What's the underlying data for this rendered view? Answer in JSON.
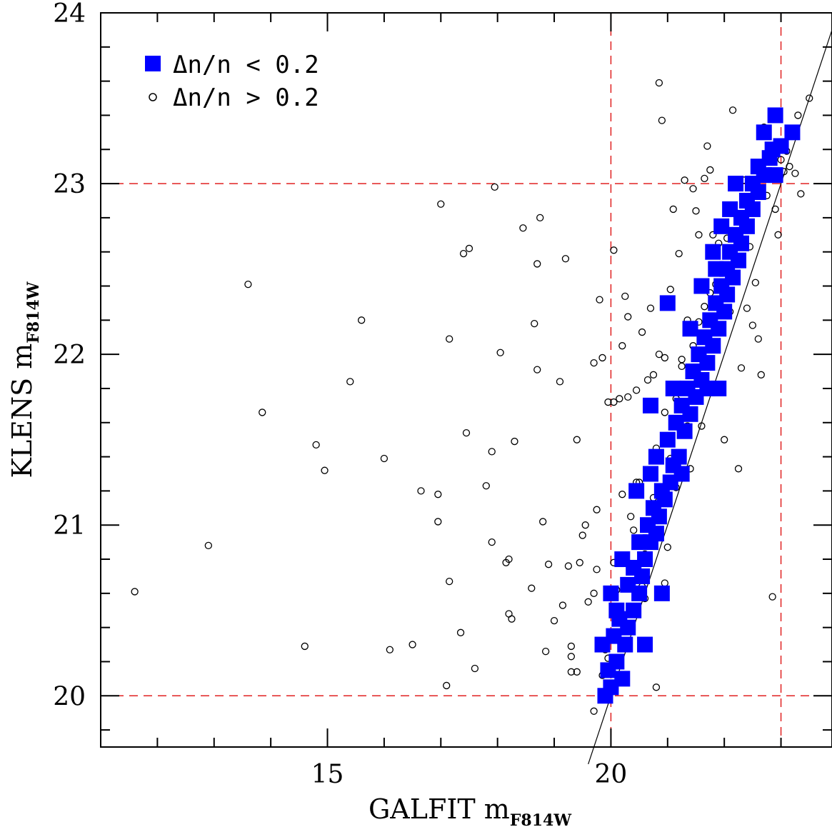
{
  "chart_data": {
    "type": "scatter",
    "xlabel": "GALFIT m",
    "xlabel_sub": "F814W",
    "ylabel": "KLENS m",
    "ylabel_sub": "F814W",
    "xlim": [
      11.0,
      23.9
    ],
    "ylim": [
      19.7,
      24.0
    ],
    "x_major_ticks": [
      15,
      20
    ],
    "x_minor_ticks": [
      12,
      13,
      14,
      16,
      17,
      18,
      19,
      21,
      22,
      23
    ],
    "y_major_ticks": [
      20,
      21,
      22,
      23,
      24
    ],
    "y_minor_ticks": [
      19.8,
      20.2,
      20.4,
      20.6,
      20.8,
      21.2,
      21.4,
      21.6,
      21.8,
      22.2,
      22.4,
      22.6,
      22.8,
      23.2,
      23.4,
      23.6,
      23.8
    ],
    "reference_lines": {
      "vertical": [
        20,
        23
      ],
      "horizontal": [
        20,
        23
      ],
      "color": "#e02020",
      "style": "dashed"
    },
    "identity_line": {
      "from": [
        19.6,
        19.6
      ],
      "to": [
        23.9,
        23.9
      ]
    },
    "legend": {
      "position": "top-left",
      "entries": [
        "Δn/n < 0.2",
        "Δn/n > 0.2"
      ]
    },
    "series": [
      {
        "name": "Δn/n < 0.2",
        "marker": "filled-square",
        "color": "#0000ff",
        "points": [
          [
            19.9,
            20.0
          ],
          [
            20.0,
            20.05
          ],
          [
            19.95,
            20.15
          ],
          [
            20.1,
            20.2
          ],
          [
            20.2,
            20.1
          ],
          [
            19.85,
            20.3
          ],
          [
            20.05,
            20.35
          ],
          [
            20.25,
            20.3
          ],
          [
            20.15,
            20.45
          ],
          [
            20.3,
            20.4
          ],
          [
            20.1,
            20.5
          ],
          [
            20.4,
            20.5
          ],
          [
            20.5,
            20.6
          ],
          [
            20.3,
            20.65
          ],
          [
            20.55,
            20.7
          ],
          [
            20.0,
            20.6
          ],
          [
            20.4,
            20.75
          ],
          [
            20.6,
            20.8
          ],
          [
            20.2,
            20.8
          ],
          [
            20.7,
            20.9
          ],
          [
            20.5,
            20.9
          ],
          [
            20.8,
            20.95
          ],
          [
            20.65,
            21.0
          ],
          [
            20.85,
            21.05
          ],
          [
            20.75,
            21.1
          ],
          [
            20.95,
            21.15
          ],
          [
            20.45,
            21.2
          ],
          [
            20.9,
            21.2
          ],
          [
            21.05,
            21.25
          ],
          [
            20.7,
            21.3
          ],
          [
            21.1,
            21.35
          ],
          [
            20.8,
            21.4
          ],
          [
            21.2,
            21.4
          ],
          [
            21.0,
            21.5
          ],
          [
            21.3,
            21.55
          ],
          [
            21.15,
            21.6
          ],
          [
            21.4,
            21.65
          ],
          [
            21.25,
            21.7
          ],
          [
            20.7,
            21.7
          ],
          [
            21.5,
            21.75
          ],
          [
            21.35,
            21.8
          ],
          [
            21.6,
            21.85
          ],
          [
            21.45,
            21.9
          ],
          [
            21.7,
            21.95
          ],
          [
            21.55,
            22.0
          ],
          [
            21.8,
            22.05
          ],
          [
            21.65,
            22.1
          ],
          [
            21.9,
            22.15
          ],
          [
            21.75,
            22.2
          ],
          [
            21.4,
            22.15
          ],
          [
            22.0,
            22.25
          ],
          [
            21.85,
            22.3
          ],
          [
            21.0,
            22.3
          ],
          [
            22.05,
            22.35
          ],
          [
            21.95,
            22.4
          ],
          [
            22.15,
            22.45
          ],
          [
            22.05,
            22.5
          ],
          [
            21.85,
            22.5
          ],
          [
            22.25,
            22.55
          ],
          [
            22.1,
            22.6
          ],
          [
            22.3,
            22.65
          ],
          [
            22.2,
            22.7
          ],
          [
            21.95,
            22.75
          ],
          [
            22.4,
            22.75
          ],
          [
            22.3,
            22.8
          ],
          [
            22.1,
            22.85
          ],
          [
            22.5,
            22.85
          ],
          [
            22.4,
            22.9
          ],
          [
            22.6,
            22.95
          ],
          [
            22.2,
            23.0
          ],
          [
            22.5,
            23.0
          ],
          [
            22.7,
            23.05
          ],
          [
            22.9,
            23.05
          ],
          [
            22.6,
            23.1
          ],
          [
            22.8,
            23.15
          ],
          [
            22.85,
            23.2
          ],
          [
            23.0,
            23.22
          ],
          [
            23.2,
            23.3
          ],
          [
            22.7,
            23.3
          ],
          [
            22.9,
            23.4
          ],
          [
            21.7,
            21.8
          ],
          [
            21.1,
            21.8
          ],
          [
            21.9,
            21.8
          ],
          [
            21.25,
            21.3
          ],
          [
            20.6,
            20.3
          ],
          [
            20.9,
            20.6
          ],
          [
            21.6,
            22.4
          ],
          [
            21.8,
            22.6
          ]
        ]
      },
      {
        "name": "Δn/n > 0.2",
        "marker": "open-circle",
        "color": "#000000",
        "points": [
          [
            11.6,
            20.61
          ],
          [
            12.9,
            20.88
          ],
          [
            13.6,
            22.41
          ],
          [
            13.85,
            21.66
          ],
          [
            14.6,
            20.29
          ],
          [
            14.8,
            21.47
          ],
          [
            14.95,
            21.32
          ],
          [
            15.4,
            21.84
          ],
          [
            15.6,
            22.2
          ],
          [
            16.0,
            21.39
          ],
          [
            16.1,
            20.27
          ],
          [
            16.5,
            20.3
          ],
          [
            16.65,
            21.2
          ],
          [
            16.95,
            21.18
          ],
          [
            16.95,
            21.02
          ],
          [
            17.0,
            22.88
          ],
          [
            17.1,
            20.06
          ],
          [
            17.15,
            22.09
          ],
          [
            17.15,
            20.67
          ],
          [
            17.35,
            20.37
          ],
          [
            17.4,
            22.59
          ],
          [
            17.5,
            22.62
          ],
          [
            17.45,
            21.54
          ],
          [
            17.6,
            20.16
          ],
          [
            17.8,
            21.23
          ],
          [
            17.9,
            20.9
          ],
          [
            17.9,
            21.43
          ],
          [
            17.95,
            22.98
          ],
          [
            18.05,
            22.01
          ],
          [
            18.15,
            20.78
          ],
          [
            18.2,
            20.8
          ],
          [
            18.2,
            20.48
          ],
          [
            18.25,
            20.45
          ],
          [
            18.3,
            21.49
          ],
          [
            18.45,
            22.74
          ],
          [
            18.6,
            20.63
          ],
          [
            18.65,
            22.18
          ],
          [
            18.7,
            21.91
          ],
          [
            18.7,
            22.53
          ],
          [
            18.75,
            22.8
          ],
          [
            18.8,
            21.02
          ],
          [
            18.85,
            20.26
          ],
          [
            18.9,
            20.77
          ],
          [
            19.0,
            20.44
          ],
          [
            19.1,
            21.84
          ],
          [
            19.15,
            20.53
          ],
          [
            19.2,
            22.56
          ],
          [
            19.25,
            20.76
          ],
          [
            19.3,
            20.29
          ],
          [
            19.3,
            20.23
          ],
          [
            19.3,
            20.14
          ],
          [
            19.4,
            20.14
          ],
          [
            19.4,
            21.5
          ],
          [
            19.45,
            20.78
          ],
          [
            19.5,
            20.94
          ],
          [
            19.55,
            21.0
          ],
          [
            19.6,
            20.55
          ],
          [
            19.7,
            19.91
          ],
          [
            19.7,
            20.6
          ],
          [
            19.7,
            21.95
          ],
          [
            19.75,
            20.74
          ],
          [
            19.75,
            21.09
          ],
          [
            19.8,
            20.32
          ],
          [
            19.8,
            22.32
          ],
          [
            19.85,
            21.98
          ],
          [
            19.85,
            20.12
          ],
          [
            19.9,
            20.27
          ],
          [
            19.9,
            19.99
          ],
          [
            19.9,
            20.16
          ],
          [
            19.95,
            20.22
          ],
          [
            19.95,
            21.72
          ],
          [
            20.05,
            22.61
          ],
          [
            20.05,
            20.78
          ],
          [
            20.1,
            20.62
          ],
          [
            20.15,
            21.74
          ],
          [
            20.2,
            21.18
          ],
          [
            20.2,
            22.05
          ],
          [
            20.25,
            20.67
          ],
          [
            20.3,
            21.75
          ],
          [
            20.35,
            21.05
          ],
          [
            20.4,
            20.97
          ],
          [
            20.45,
            21.25
          ],
          [
            20.5,
            21.25
          ],
          [
            20.55,
            20.64
          ],
          [
            20.6,
            20.57
          ],
          [
            20.6,
            20.83
          ],
          [
            20.65,
            20.92
          ],
          [
            20.7,
            22.27
          ],
          [
            20.75,
            21.16
          ],
          [
            20.8,
            21.45
          ],
          [
            20.8,
            20.05
          ],
          [
            20.85,
            23.59
          ],
          [
            20.9,
            23.37
          ],
          [
            20.95,
            20.66
          ],
          [
            20.95,
            21.98
          ],
          [
            21.0,
            20.87
          ],
          [
            21.05,
            22.38
          ],
          [
            21.1,
            22.85
          ],
          [
            21.15,
            21.22
          ],
          [
            21.2,
            22.59
          ],
          [
            21.25,
            21.97
          ],
          [
            21.3,
            23.02
          ],
          [
            21.35,
            21.58
          ],
          [
            21.4,
            21.33
          ],
          [
            21.45,
            22.97
          ],
          [
            21.5,
            22.84
          ],
          [
            21.55,
            22.7
          ],
          [
            21.6,
            21.58
          ],
          [
            21.65,
            23.03
          ],
          [
            21.7,
            23.22
          ],
          [
            21.75,
            23.08
          ],
          [
            21.8,
            22.7
          ],
          [
            21.85,
            22.07
          ],
          [
            21.9,
            22.65
          ],
          [
            21.95,
            21.78
          ],
          [
            22.0,
            21.5
          ],
          [
            22.05,
            22.52
          ],
          [
            22.1,
            22.25
          ],
          [
            22.15,
            23.43
          ],
          [
            22.2,
            22.47
          ],
          [
            22.25,
            21.33
          ],
          [
            22.3,
            21.92
          ],
          [
            22.35,
            23.02
          ],
          [
            22.4,
            22.27
          ],
          [
            22.45,
            22.63
          ],
          [
            22.5,
            22.17
          ],
          [
            22.55,
            22.42
          ],
          [
            22.6,
            22.09
          ],
          [
            22.65,
            21.88
          ],
          [
            22.7,
            23.33
          ],
          [
            22.75,
            22.93
          ],
          [
            22.8,
            23.13
          ],
          [
            22.85,
            20.58
          ],
          [
            22.9,
            22.85
          ],
          [
            22.95,
            22.7
          ],
          [
            23.0,
            23.14
          ],
          [
            23.05,
            23.07
          ],
          [
            23.1,
            23.19
          ],
          [
            23.15,
            23.1
          ],
          [
            23.25,
            23.06
          ],
          [
            23.3,
            23.4
          ],
          [
            23.35,
            22.94
          ],
          [
            23.5,
            23.5
          ],
          [
            20.05,
            21.72
          ],
          [
            20.25,
            22.34
          ],
          [
            20.3,
            22.22
          ],
          [
            20.45,
            21.79
          ],
          [
            20.55,
            22.13
          ],
          [
            20.65,
            21.85
          ],
          [
            20.75,
            21.88
          ],
          [
            20.85,
            22.0
          ],
          [
            20.95,
            21.66
          ],
          [
            21.05,
            21.39
          ],
          [
            21.15,
            21.74
          ],
          [
            21.25,
            21.93
          ],
          [
            21.35,
            22.2
          ],
          [
            21.45,
            22.05
          ],
          [
            21.55,
            22.19
          ],
          [
            21.65,
            22.28
          ],
          [
            21.75,
            22.36
          ],
          [
            21.85,
            22.41
          ],
          [
            21.95,
            22.23
          ],
          [
            22.05,
            22.68
          ]
        ]
      }
    ]
  }
}
